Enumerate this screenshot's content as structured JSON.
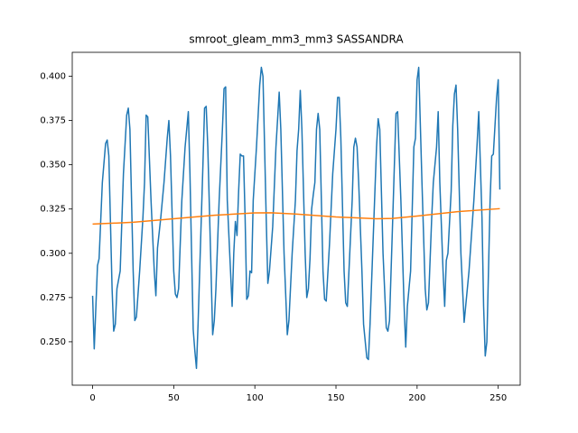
{
  "chart_data": {
    "type": "line",
    "title": "smroot_gleam_mm3_mm3 SASSANDRA",
    "xlim": [
      -12.55,
      263.55
    ],
    "xticks": [
      0,
      50,
      100,
      150,
      200,
      250
    ],
    "ylim": [
      0.2255,
      0.4135
    ],
    "yticks": [
      {
        "value": 0.25,
        "label": "0.250"
      },
      0.275,
      {
        "value": 0.3,
        "label": "0.300"
      },
      0.325,
      {
        "value": 0.35,
        "label": "0.350"
      },
      0.375,
      {
        "value": 0.4,
        "label": "0.400"
      }
    ],
    "series": [
      {
        "color": "#1f77b4",
        "x": [
          0,
          1,
          3,
          4,
          6,
          8,
          9,
          10,
          12,
          13,
          14,
          15,
          17,
          19,
          21,
          22,
          23,
          25,
          26,
          27,
          29,
          31,
          32,
          33,
          34,
          36,
          38,
          39,
          40,
          42,
          44,
          46,
          47,
          48,
          50,
          51,
          52,
          53,
          55,
          57,
          58,
          59,
          60,
          61,
          62,
          63,
          64,
          65,
          67,
          68,
          69,
          70,
          71,
          73,
          74,
          75,
          76,
          78,
          80,
          81,
          82,
          83,
          85,
          86,
          87,
          88,
          89,
          90,
          91,
          92,
          93,
          94,
          95,
          96,
          97,
          98,
          99,
          101,
          103,
          104,
          105,
          107,
          108,
          109,
          111,
          113,
          115,
          116,
          118,
          120,
          121,
          123,
          125,
          126,
          127,
          128,
          129,
          131,
          132,
          133,
          134,
          135,
          136,
          137,
          138,
          139,
          140,
          142,
          143,
          144,
          146,
          148,
          150,
          151,
          152,
          153,
          155,
          156,
          157,
          158,
          160,
          161,
          162,
          163,
          164,
          166,
          167,
          169,
          170,
          171,
          173,
          175,
          176,
          177,
          179,
          181,
          182,
          183,
          185,
          186,
          187,
          188,
          190,
          192,
          193,
          194,
          196,
          198,
          199,
          200,
          201,
          203,
          205,
          206,
          207,
          209,
          210,
          212,
          213,
          214,
          216,
          217,
          218,
          219,
          221,
          222,
          223,
          224,
          225,
          227,
          229,
          232,
          235,
          237,
          238,
          240,
          241,
          242,
          243,
          245,
          246,
          247,
          249,
          250,
          251
        ],
        "values": [
          0.276,
          0.246,
          0.293,
          0.297,
          0.34,
          0.362,
          0.364,
          0.355,
          0.28,
          0.256,
          0.26,
          0.28,
          0.29,
          0.345,
          0.378,
          0.382,
          0.37,
          0.29,
          0.262,
          0.264,
          0.29,
          0.32,
          0.34,
          0.378,
          0.377,
          0.33,
          0.29,
          0.276,
          0.303,
          0.32,
          0.34,
          0.365,
          0.375,
          0.355,
          0.29,
          0.277,
          0.275,
          0.28,
          0.33,
          0.36,
          0.37,
          0.38,
          0.345,
          0.3,
          0.257,
          0.245,
          0.235,
          0.26,
          0.32,
          0.35,
          0.382,
          0.383,
          0.36,
          0.29,
          0.254,
          0.262,
          0.28,
          0.33,
          0.37,
          0.393,
          0.394,
          0.33,
          0.29,
          0.27,
          0.3,
          0.318,
          0.31,
          0.335,
          0.356,
          0.355,
          0.355,
          0.32,
          0.274,
          0.276,
          0.29,
          0.289,
          0.33,
          0.36,
          0.395,
          0.405,
          0.4,
          0.32,
          0.283,
          0.29,
          0.315,
          0.36,
          0.391,
          0.37,
          0.3,
          0.254,
          0.262,
          0.3,
          0.33,
          0.358,
          0.37,
          0.392,
          0.37,
          0.3,
          0.275,
          0.28,
          0.297,
          0.325,
          0.333,
          0.34,
          0.37,
          0.379,
          0.37,
          0.29,
          0.274,
          0.273,
          0.305,
          0.345,
          0.37,
          0.388,
          0.388,
          0.365,
          0.29,
          0.272,
          0.27,
          0.29,
          0.33,
          0.36,
          0.365,
          0.36,
          0.34,
          0.29,
          0.26,
          0.241,
          0.24,
          0.26,
          0.31,
          0.36,
          0.376,
          0.37,
          0.3,
          0.258,
          0.256,
          0.262,
          0.32,
          0.35,
          0.379,
          0.38,
          0.33,
          0.27,
          0.247,
          0.27,
          0.29,
          0.36,
          0.365,
          0.398,
          0.405,
          0.34,
          0.28,
          0.268,
          0.272,
          0.32,
          0.34,
          0.36,
          0.38,
          0.34,
          0.29,
          0.27,
          0.296,
          0.3,
          0.335,
          0.372,
          0.39,
          0.395,
          0.37,
          0.3,
          0.261,
          0.29,
          0.33,
          0.362,
          0.38,
          0.32,
          0.27,
          0.242,
          0.25,
          0.33,
          0.355,
          0.356,
          0.388,
          0.398,
          0.336
        ]
      },
      {
        "color": "#ff7f0e",
        "x": [
          0,
          25,
          50,
          75,
          100,
          110,
          125,
          150,
          175,
          185,
          200,
          225,
          251
        ],
        "values": [
          0.3165,
          0.3175,
          0.3195,
          0.3215,
          0.3228,
          0.3229,
          0.3222,
          0.3205,
          0.3195,
          0.3197,
          0.321,
          0.3235,
          0.3252
        ]
      }
    ]
  }
}
